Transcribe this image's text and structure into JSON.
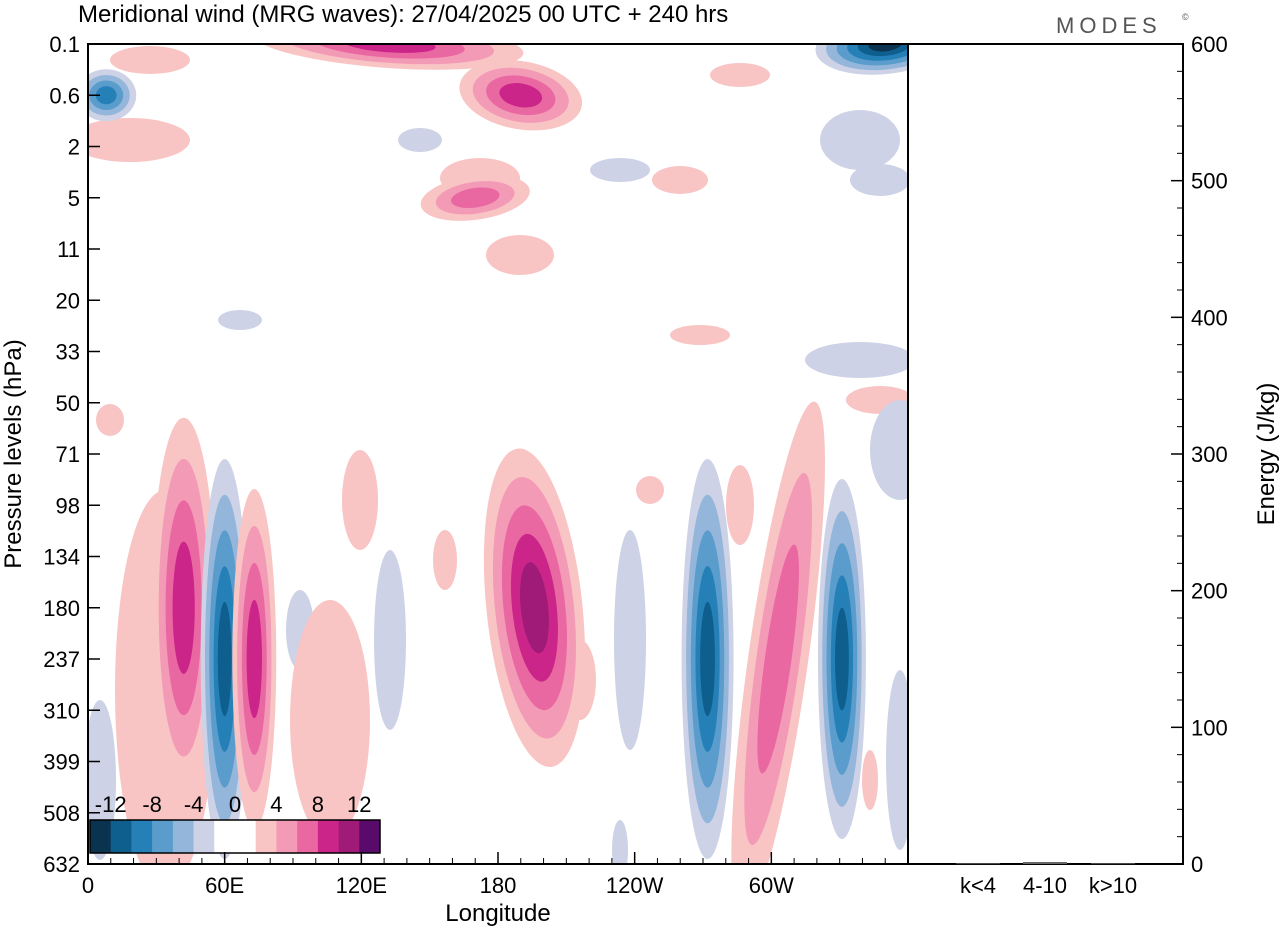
{
  "header": {
    "title": "Meridional wind (MRG waves):  27/04/2025  00 UTC  + 240 hrs",
    "brand": "MODES",
    "brand_mark": "©"
  },
  "chart_data": [
    {
      "type": "heatmap",
      "title": "Meridional wind (MRG waves):  27/04/2025  00 UTC  + 240 hrs",
      "xlabel": "Longitude",
      "ylabel": "Pressure levels (hPa)",
      "x_ticks": [
        "0",
        "60E",
        "120E",
        "180",
        "120W",
        "60W"
      ],
      "x_tick_values_deg": [
        0,
        60,
        120,
        180,
        240,
        300
      ],
      "xlim_deg": [
        0,
        360
      ],
      "y_ticks": [
        "0.1",
        "0.6",
        "2",
        "5",
        "11",
        "20",
        "33",
        "50",
        "71",
        "98",
        "134",
        "180",
        "237",
        "310",
        "399",
        "508",
        "632"
      ],
      "y_scale": "pressure levels (inverted, top = 0.1 hPa)",
      "colorbar": {
        "tick_labels": [
          "-12",
          "-8",
          "-4",
          "0",
          "4",
          "8",
          "12"
        ],
        "levels": [
          -14,
          -12,
          -10,
          -8,
          -6,
          -4,
          -2,
          2,
          4,
          6,
          8,
          10,
          12,
          14
        ],
        "colors": [
          "#0a3350",
          "#0e5e8e",
          "#2680b8",
          "#5a9ccb",
          "#94b6da",
          "#cdd2e6",
          "#ffffff",
          "#ffffff",
          "#f9c4c4",
          "#f39ab6",
          "#ea68a2",
          "#cc2589",
          "#a01a78",
          "#5a0a6a"
        ],
        "placement": "bottom-left inside plot"
      },
      "features": [
        {
          "lon": 8,
          "level": "0.6",
          "value": -8
        },
        {
          "lon": 350,
          "level": "0.1",
          "value": -14
        },
        {
          "lon": 132,
          "level": "0.1",
          "value": 8
        },
        {
          "lon": 190,
          "level": "0.6",
          "value": 8
        },
        {
          "lon": 170,
          "level": "5",
          "value": 6
        },
        {
          "lon": 42,
          "level": "180",
          "value": 8
        },
        {
          "lon": 60,
          "level": "237",
          "value": -10
        },
        {
          "lon": 73,
          "level": "237",
          "value": 8
        },
        {
          "lon": 196,
          "level": "180",
          "value": 10
        },
        {
          "lon": 272,
          "level": "237",
          "value": -10
        },
        {
          "lon": 303,
          "level": "237",
          "value": 6
        },
        {
          "lon": 331,
          "level": "237",
          "value": -10
        }
      ],
      "grid": false
    },
    {
      "type": "bar",
      "categories": [
        "k<4",
        "4-10",
        "k>10"
      ],
      "values": [
        0.5,
        1.5,
        0.5
      ],
      "ylabel": "Energy (J/kg)",
      "ylim": [
        0,
        600
      ],
      "y_ticks": [
        "0",
        "100",
        "200",
        "300",
        "400",
        "500",
        "600"
      ],
      "axis_side": "right"
    }
  ]
}
